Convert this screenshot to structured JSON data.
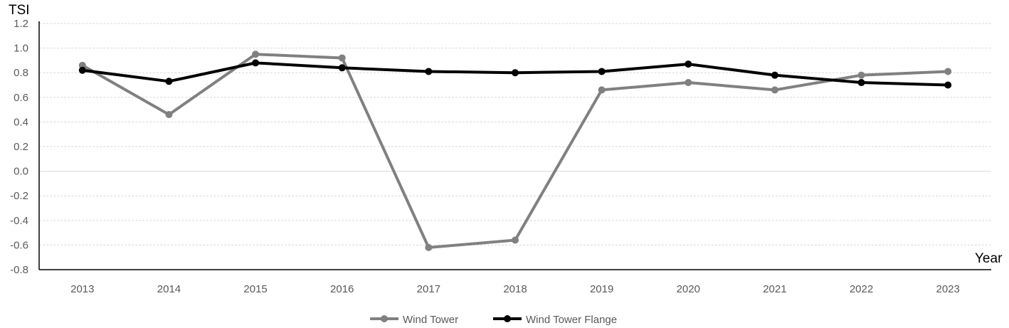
{
  "chart_data": {
    "type": "line",
    "title": "",
    "xlabel": "Year",
    "ylabel": "TSI",
    "categories": [
      "2013",
      "2014",
      "2015",
      "2016",
      "2017",
      "2018",
      "2019",
      "2020",
      "2021",
      "2022",
      "2023"
    ],
    "ylim": [
      -0.8,
      1.2
    ],
    "yticks": [
      "-0.8",
      "-0.6",
      "-0.4",
      "-0.2",
      "0.0",
      "0.2",
      "0.4",
      "0.6",
      "0.8",
      "1.0",
      "1.2"
    ],
    "grid": true,
    "legend_position": "bottom",
    "series": [
      {
        "name": "Wind Tower",
        "color": "#808080",
        "values": [
          0.86,
          0.46,
          0.95,
          0.92,
          -0.62,
          -0.56,
          0.66,
          0.72,
          0.66,
          0.78,
          0.81
        ]
      },
      {
        "name": "Wind Tower Flange",
        "color": "#000000",
        "values": [
          0.82,
          0.73,
          0.88,
          0.84,
          0.81,
          0.8,
          0.81,
          0.87,
          0.78,
          0.72,
          0.7
        ]
      }
    ]
  }
}
